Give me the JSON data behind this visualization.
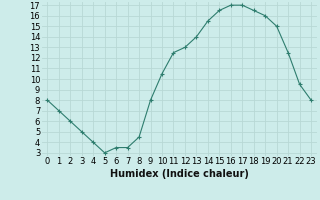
{
  "x": [
    0,
    1,
    2,
    3,
    4,
    5,
    6,
    7,
    8,
    9,
    10,
    11,
    12,
    13,
    14,
    15,
    16,
    17,
    18,
    19,
    20,
    21,
    22,
    23
  ],
  "y": [
    8,
    7,
    6,
    5,
    4,
    3,
    3.5,
    3.5,
    4.5,
    8,
    10.5,
    12.5,
    13,
    14,
    15.5,
    16.5,
    17,
    17,
    16.5,
    16,
    15,
    12.5,
    9.5,
    8
  ],
  "line_color": "#2e7d6e",
  "marker": "+",
  "bg_color": "#cdecea",
  "grid_color": "#b8d8d5",
  "xlabel": "Humidex (Indice chaleur)",
  "ylim": [
    3,
    17
  ],
  "xlim": [
    -0.5,
    23.5
  ],
  "yticks": [
    3,
    4,
    5,
    6,
    7,
    8,
    9,
    10,
    11,
    12,
    13,
    14,
    15,
    16,
    17
  ],
  "xticks": [
    0,
    1,
    2,
    3,
    4,
    5,
    6,
    7,
    8,
    9,
    10,
    11,
    12,
    13,
    14,
    15,
    16,
    17,
    18,
    19,
    20,
    21,
    22,
    23
  ],
  "font_size": 6,
  "xlabel_fontsize": 7
}
